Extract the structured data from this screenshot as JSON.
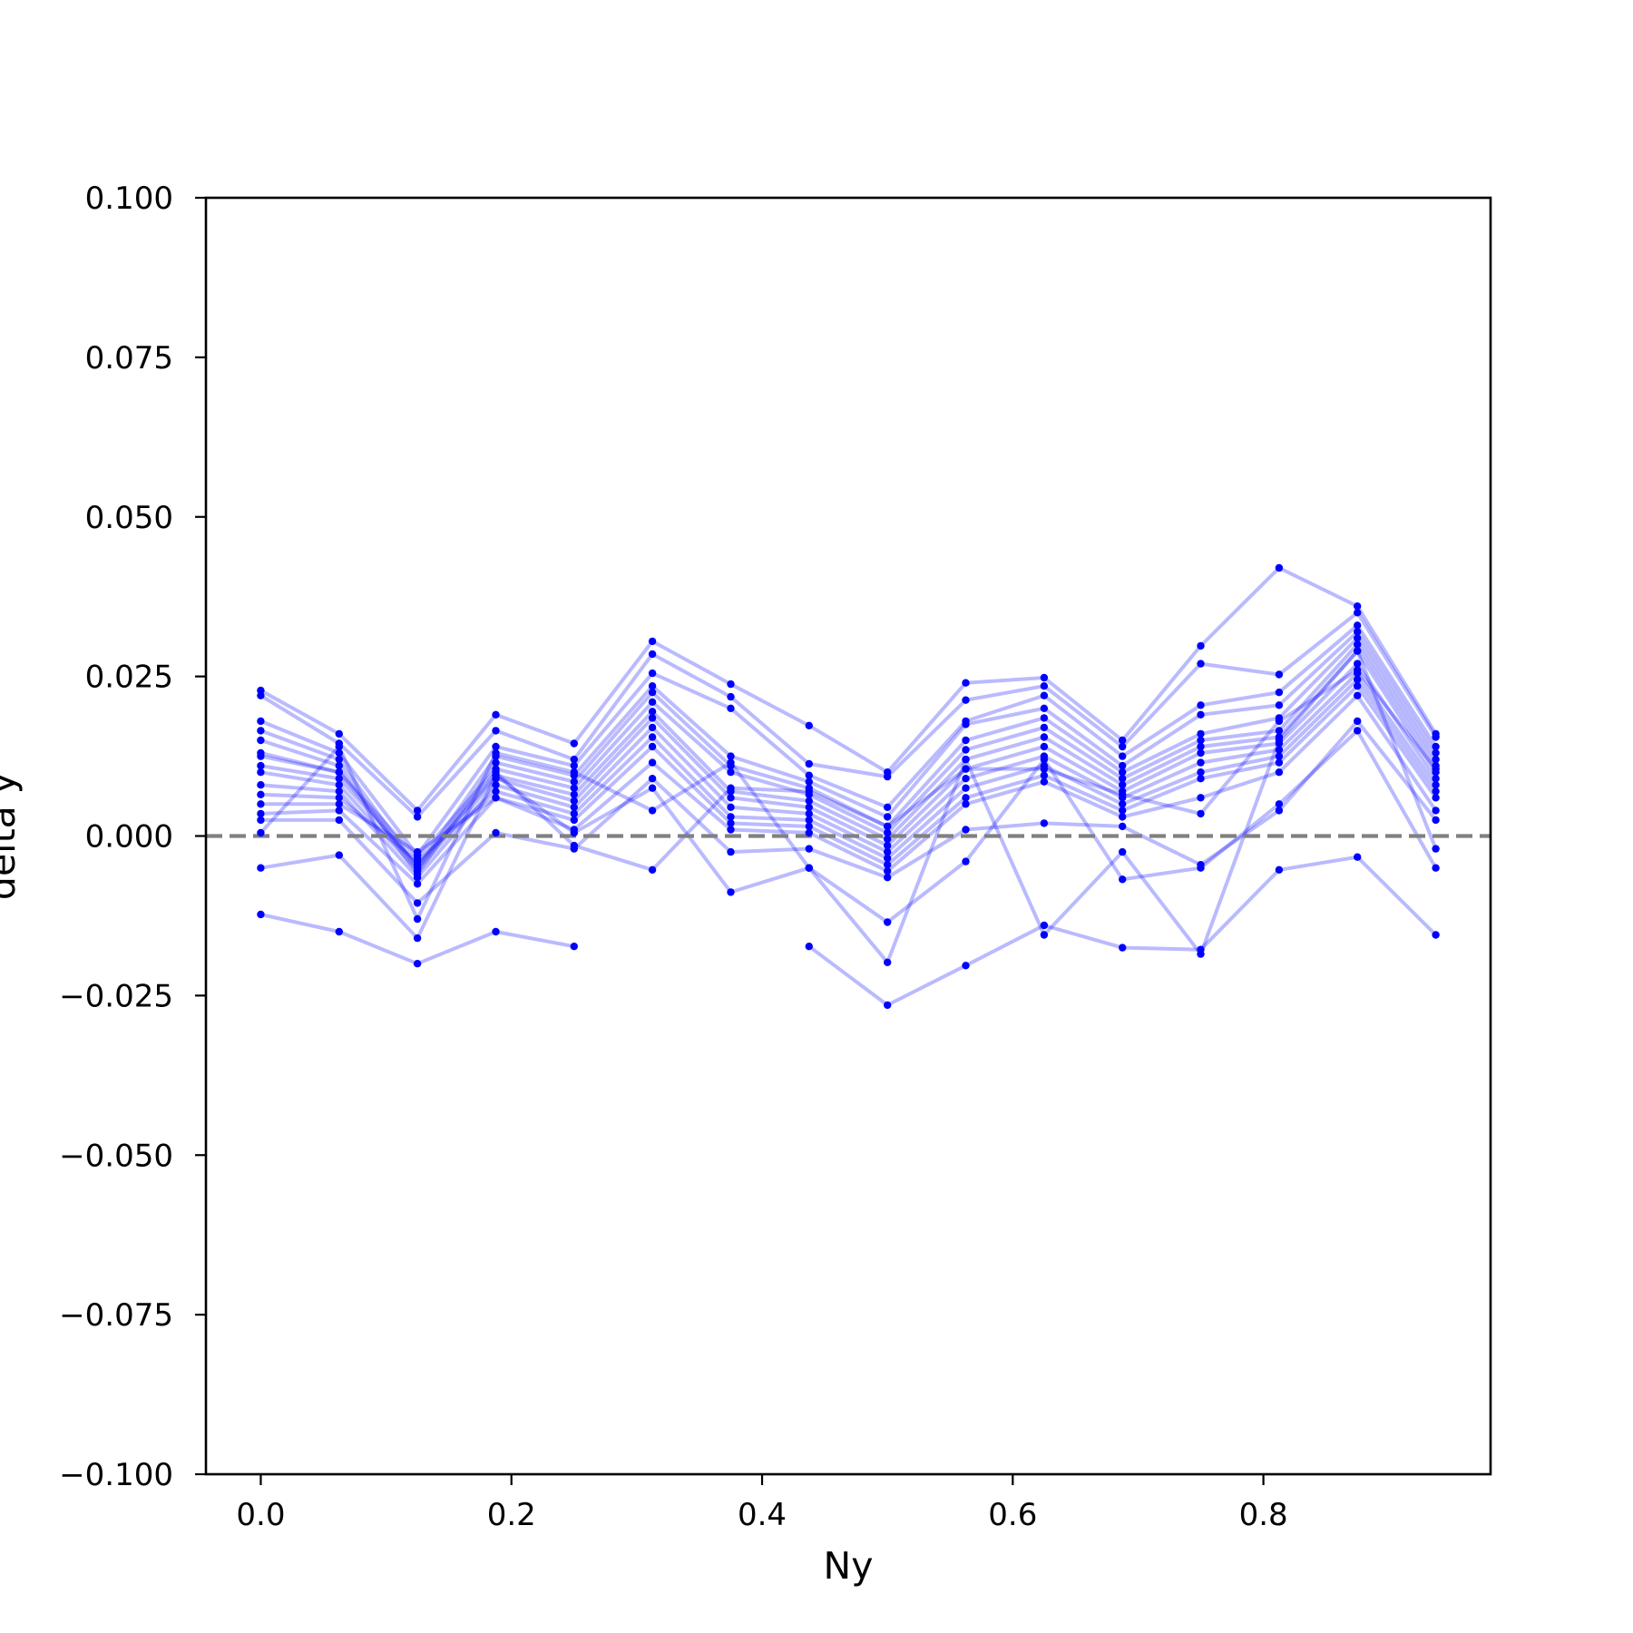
{
  "chart_data": {
    "type": "line",
    "title": "",
    "xlabel": "Ny",
    "ylabel": "delta y",
    "xlim": [
      -0.04375,
      0.98125
    ],
    "ylim": [
      -0.1,
      0.1
    ],
    "x_ticks": [
      0.0,
      0.2,
      0.4,
      0.6,
      0.8
    ],
    "x_tick_labels": [
      "0.0",
      "0.2",
      "0.4",
      "0.6",
      "0.8"
    ],
    "y_ticks": [
      -0.1,
      -0.075,
      -0.05,
      -0.025,
      0.0,
      0.025,
      0.05,
      0.075,
      0.1
    ],
    "y_tick_labels": [
      "−0.100",
      "−0.075",
      "−0.050",
      "−0.025",
      "0.000",
      "0.025",
      "0.050",
      "0.075",
      "0.100"
    ],
    "grid": false,
    "reference_line": {
      "y": 0.0,
      "style": "dashed",
      "color": "#808080"
    },
    "series_color": "#0000ff",
    "x": [
      0.0,
      0.0625,
      0.125,
      0.1875,
      0.25,
      0.3125,
      0.375,
      0.4375,
      0.5,
      0.5625,
      0.625,
      0.6875,
      0.75,
      0.8125,
      0.875,
      0.9375
    ],
    "series": [
      {
        "values": [
          -0.0123,
          -0.015,
          -0.02,
          -0.015,
          -0.0173,
          null,
          null,
          -0.0173,
          -0.0265,
          -0.0203,
          -0.014,
          -0.0175,
          -0.0178,
          -0.0053,
          -0.0033,
          -0.0155
        ]
      },
      {
        "values": [
          0.0228,
          0.016,
          0.004,
          0.019,
          0.0145,
          0.0305,
          0.0238,
          0.0173,
          0.01,
          0.024,
          0.0248,
          0.015,
          0.0298,
          0.042,
          0.036,
          0.016
        ]
      },
      {
        "values": [
          0.022,
          0.0145,
          0.003,
          0.0165,
          0.012,
          0.0285,
          0.0218,
          0.0113,
          0.0093,
          0.0213,
          0.0235,
          0.014,
          0.027,
          0.0253,
          0.035,
          0.0155
        ]
      },
      {
        "values": [
          0.018,
          0.013,
          -0.003,
          0.014,
          0.011,
          0.0255,
          0.02,
          0.0095,
          0.0045,
          0.018,
          0.022,
          0.0125,
          0.0205,
          0.0225,
          0.033,
          0.014
        ]
      },
      {
        "values": [
          0.0165,
          0.012,
          -0.005,
          0.0125,
          0.0095,
          0.0235,
          0.0125,
          0.0085,
          0.003,
          0.0175,
          0.02,
          0.011,
          0.019,
          0.0205,
          0.032,
          0.013
        ]
      },
      {
        "values": [
          0.015,
          0.011,
          -0.006,
          0.0115,
          0.0085,
          0.0225,
          0.011,
          0.0075,
          0.0015,
          0.015,
          0.0185,
          0.01,
          0.016,
          0.0185,
          0.031,
          0.012
        ]
      },
      {
        "values": [
          0.0125,
          0.01,
          -0.0035,
          0.0105,
          0.0075,
          0.021,
          0.01,
          0.0065,
          0.0005,
          0.0135,
          0.017,
          0.009,
          0.015,
          0.0165,
          0.03,
          0.011
        ]
      },
      {
        "values": [
          0.011,
          0.009,
          -0.0045,
          0.0095,
          0.0065,
          0.0195,
          0.007,
          0.0055,
          -0.0005,
          0.012,
          0.0155,
          0.008,
          0.014,
          0.0155,
          0.029,
          0.01
        ]
      },
      {
        "values": [
          0.01,
          0.008,
          -0.0055,
          0.009,
          0.0055,
          0.0185,
          0.006,
          0.0045,
          -0.0015,
          0.0105,
          0.014,
          0.007,
          0.013,
          0.0145,
          0.027,
          0.009
        ]
      },
      {
        "values": [
          0.008,
          0.007,
          -0.0065,
          0.008,
          0.0045,
          0.017,
          0.0045,
          0.0035,
          -0.0025,
          0.009,
          0.0125,
          0.006,
          0.0115,
          0.0135,
          0.0255,
          0.008
        ]
      },
      {
        "values": [
          0.0065,
          0.006,
          -0.004,
          0.007,
          0.0035,
          0.0155,
          0.003,
          0.0025,
          -0.0035,
          0.0075,
          0.011,
          0.005,
          0.01,
          0.0125,
          0.0245,
          0.007
        ]
      },
      {
        "values": [
          0.005,
          0.005,
          -0.0025,
          0.006,
          0.0025,
          0.014,
          0.002,
          0.0015,
          -0.0045,
          0.006,
          0.0095,
          0.004,
          0.009,
          0.0115,
          0.0235,
          0.006
        ]
      },
      {
        "values": [
          0.0035,
          0.004,
          -0.0075,
          0.006,
          0.001,
          0.0115,
          0.001,
          0.0005,
          -0.0055,
          0.005,
          0.0085,
          0.003,
          0.006,
          0.01,
          0.022,
          0.004
        ]
      },
      {
        "values": [
          0.0025,
          0.0025,
          -0.0105,
          0.0005,
          -0.002,
          0.009,
          -0.0025,
          -0.002,
          -0.0065,
          0.001,
          0.002,
          0.0015,
          -0.0045,
          0.004,
          0.018,
          0.0025
        ]
      },
      {
        "values": [
          -0.005,
          -0.003,
          -0.016,
          0.0095,
          0.0005,
          0.0075,
          -0.0088,
          -0.005,
          -0.0135,
          -0.004,
          0.012,
          -0.0068,
          -0.005,
          0.005,
          0.0165,
          -0.005
        ]
      },
      {
        "values": [
          0.0005,
          0.014,
          -0.013,
          0.013,
          0.01,
          0.004,
          0.0115,
          -0.005,
          -0.0198,
          0.012,
          -0.0155,
          -0.0025,
          -0.0185,
          0.015,
          0.029,
          -0.002
        ]
      },
      {
        "values": [
          0.013,
          0.01,
          -0.005,
          0.01,
          -0.0015,
          -0.0053,
          0.0075,
          0.007,
          0.0015,
          0.0105,
          0.0105,
          0.0065,
          0.0035,
          0.018,
          0.026,
          0.0105
        ]
      }
    ]
  }
}
